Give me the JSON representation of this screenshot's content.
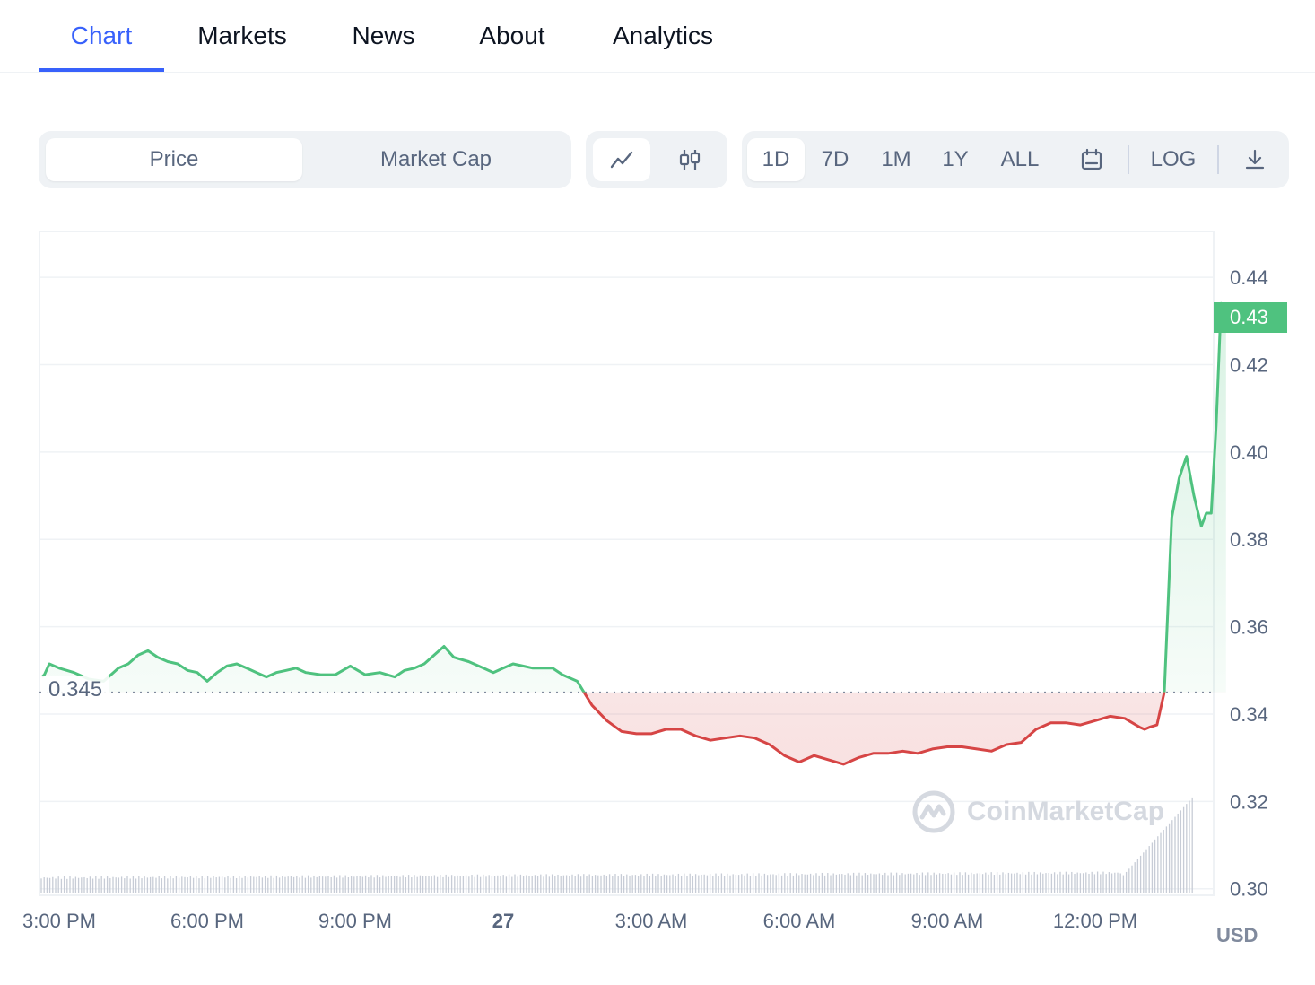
{
  "tabs": [
    {
      "label": "Chart",
      "active": true
    },
    {
      "label": "Markets",
      "active": false
    },
    {
      "label": "News",
      "active": false
    },
    {
      "label": "About",
      "active": false
    },
    {
      "label": "Analytics",
      "active": false
    }
  ],
  "toolbar": {
    "metric": {
      "price": "Price",
      "market_cap": "Market Cap",
      "selected": "Price"
    },
    "chart_style": {
      "line_icon": "line-chart-icon",
      "candle_icon": "candlestick-icon",
      "selected": "line"
    },
    "ranges": [
      "1D",
      "7D",
      "1M",
      "1Y",
      "ALL"
    ],
    "selected_range": "1D",
    "calendar_icon": "calendar-icon",
    "log_label": "LOG",
    "download_icon": "download-icon"
  },
  "chart": {
    "current_price_label": "0.43",
    "open_price_label": "0.345",
    "currency": "USD",
    "watermark": "CoinMarketCap",
    "colors": {
      "up": "#4fc27f",
      "down": "#d64545",
      "grid": "#eff2f5",
      "volume": "#c7ccd6"
    }
  },
  "chart_data": {
    "type": "line",
    "y_ticks": [
      "0.44",
      "0.42",
      "0.40",
      "0.38",
      "0.36",
      "0.34",
      "0.32",
      "0.30"
    ],
    "y_tick_values": [
      0.44,
      0.42,
      0.4,
      0.38,
      0.36,
      0.34,
      0.32,
      0.3
    ],
    "x_ticks": [
      "3:00 PM",
      "6:00 PM",
      "9:00 PM",
      "27",
      "3:00 AM",
      "6:00 AM",
      "9:00 AM",
      "12:00 PM"
    ],
    "x_tick_hours": [
      0,
      3,
      6,
      9,
      12,
      15,
      18,
      21
    ],
    "ylim": [
      0.2985,
      0.4505
    ],
    "xlim_hours": [
      -0.4,
      23.4
    ],
    "baseline": 0.345,
    "series": [
      {
        "x_hours": [
          -0.35,
          -0.3,
          -0.2,
          0,
          0.3,
          0.6,
          0.9,
          1.2,
          1.4,
          1.6,
          1.8,
          2.0,
          2.2,
          2.4,
          2.6,
          2.8,
          3.0,
          3.2,
          3.4,
          3.6,
          3.8,
          4.0,
          4.2,
          4.4,
          4.6,
          4.8,
          5.0,
          5.3,
          5.6,
          5.9,
          6.2,
          6.5,
          6.8,
          7.0,
          7.2,
          7.4,
          7.6,
          7.8,
          8.0,
          8.3,
          8.6,
          8.8,
          9.0,
          9.2,
          9.4,
          9.6,
          9.8,
          10.0,
          10.2,
          10.5,
          10.8,
          11.1,
          11.4,
          11.7,
          12.0,
          12.3,
          12.6,
          12.9,
          13.2,
          13.5,
          13.8,
          14.1,
          14.4,
          14.7,
          15.0,
          15.3,
          15.6,
          15.9,
          16.2,
          16.5,
          16.8,
          17.1,
          17.4,
          17.7,
          18.0,
          18.3,
          18.6,
          18.9,
          19.2,
          19.5,
          19.8,
          20.1,
          20.4,
          20.7,
          21.0,
          21.3,
          21.6,
          21.9,
          22.0,
          22.1,
          22.25,
          22.4,
          22.55,
          22.7,
          22.85,
          23.0,
          23.15,
          23.25,
          23.35,
          23.45,
          23.55,
          23.65
        ],
        "values": [
          0.3485,
          0.349,
          0.3515,
          0.3505,
          0.3495,
          0.348,
          0.3475,
          0.3505,
          0.3515,
          0.3535,
          0.3545,
          0.353,
          0.352,
          0.3515,
          0.35,
          0.3495,
          0.3475,
          0.3495,
          0.351,
          0.3515,
          0.3505,
          0.3495,
          0.3485,
          0.3495,
          0.35,
          0.3505,
          0.3495,
          0.349,
          0.349,
          0.351,
          0.349,
          0.3495,
          0.3485,
          0.35,
          0.3505,
          0.3515,
          0.3535,
          0.3555,
          0.353,
          0.352,
          0.3505,
          0.3495,
          0.3505,
          0.3515,
          0.351,
          0.3505,
          0.3505,
          0.3505,
          0.349,
          0.3475,
          0.342,
          0.3385,
          0.336,
          0.3355,
          0.3355,
          0.3365,
          0.3365,
          0.335,
          0.334,
          0.3345,
          0.335,
          0.3345,
          0.333,
          0.3305,
          0.329,
          0.3305,
          0.3295,
          0.3285,
          0.33,
          0.331,
          0.331,
          0.3315,
          0.331,
          0.332,
          0.3325,
          0.3325,
          0.332,
          0.3315,
          0.333,
          0.3335,
          0.3365,
          0.338,
          0.338,
          0.3375,
          0.3385,
          0.3395,
          0.339,
          0.337,
          0.3365,
          0.337,
          0.3375,
          0.345,
          0.385,
          0.394,
          0.399,
          0.39,
          0.383,
          0.386,
          0.386,
          0.406,
          0.434,
          0.43
        ]
      }
    ],
    "volume_note": "relative bars, larger near end"
  }
}
